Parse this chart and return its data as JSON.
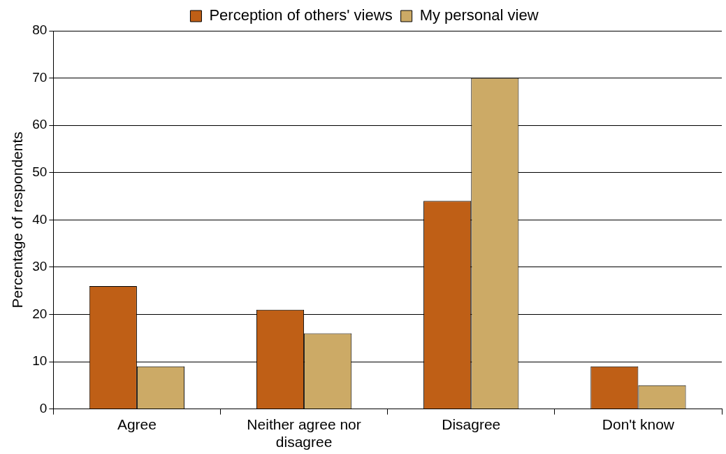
{
  "chart_data": {
    "type": "bar",
    "ylabel": "Percentage of respondents",
    "categories": [
      "Agree",
      "Neither agree nor disagree",
      "Disagree",
      "Don't know"
    ],
    "series": [
      {
        "name": "Perception of others' views",
        "color": "#bf5f16",
        "values": [
          26,
          21,
          44,
          9
        ]
      },
      {
        "name": "My personal view",
        "color": "#ccaa66",
        "values": [
          9,
          16,
          70,
          5
        ]
      }
    ],
    "ylim": [
      0,
      80
    ],
    "yticks": [
      0,
      10,
      20,
      30,
      40,
      50,
      60,
      70,
      80
    ],
    "grid": "y",
    "legend": "top"
  }
}
